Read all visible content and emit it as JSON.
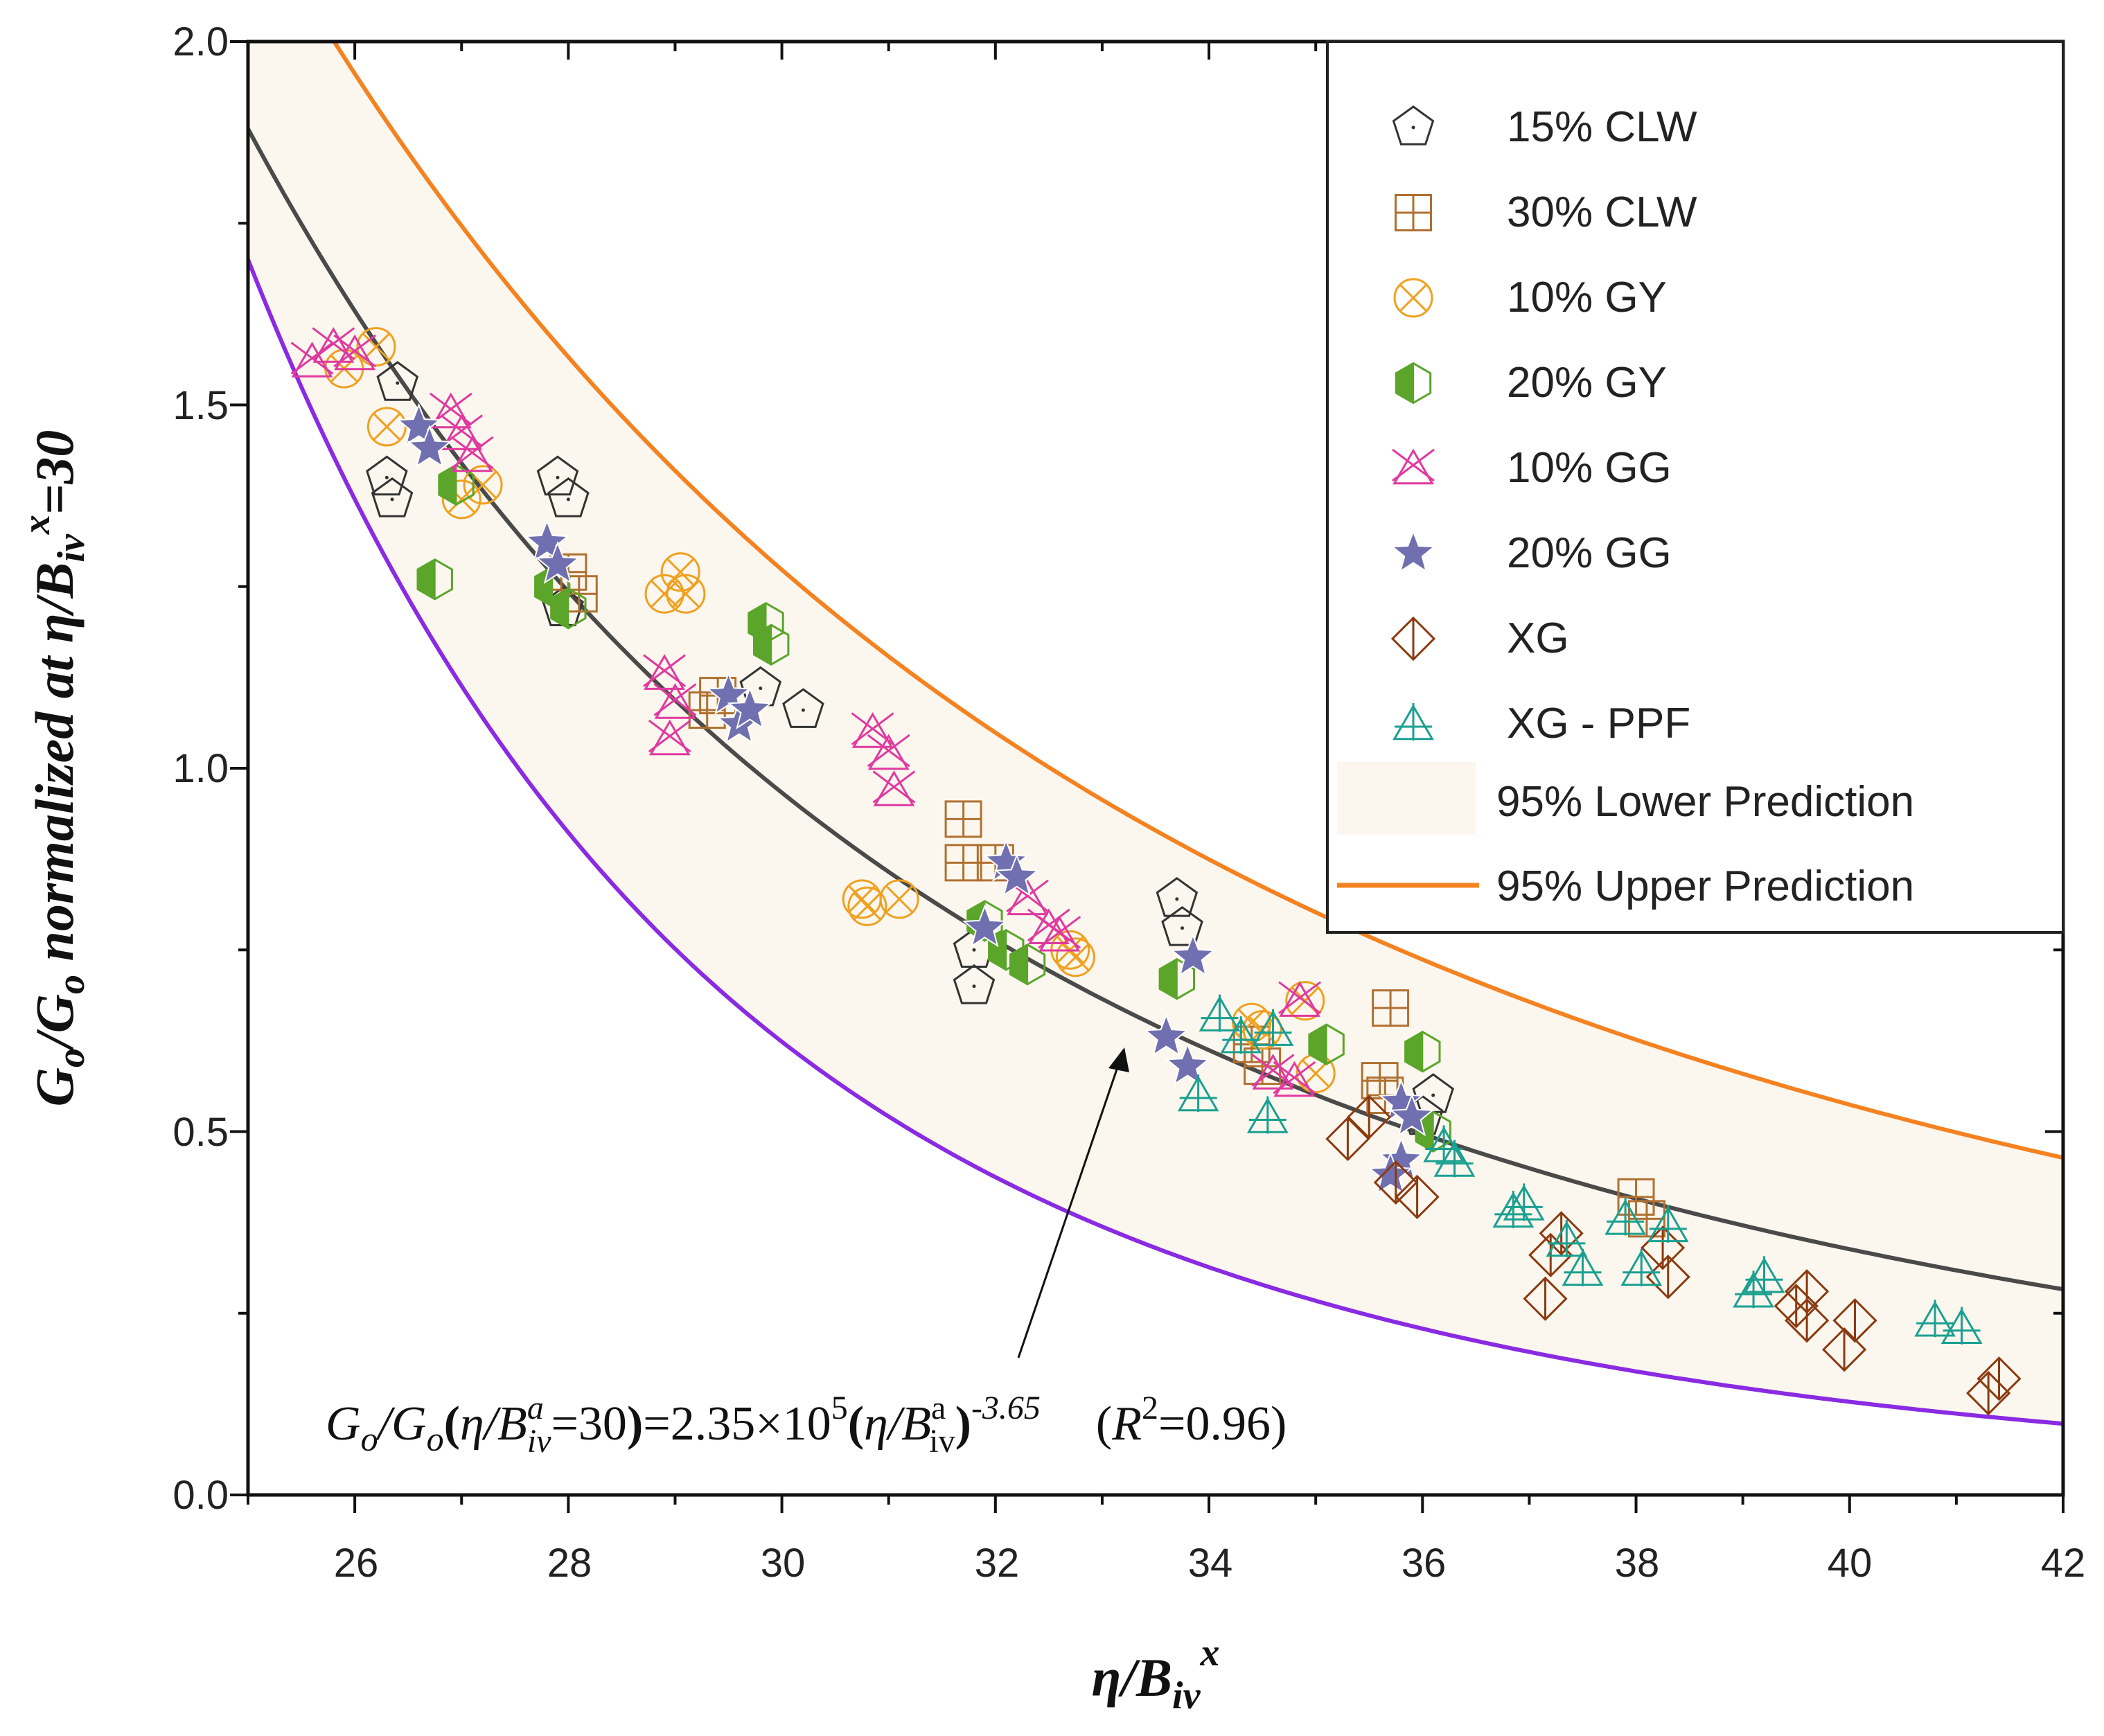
{
  "chart_data": {
    "type": "scatter",
    "title": "",
    "xlabel": {
      "main": "η/B",
      "sub": "iv",
      "sup": "x"
    },
    "ylabel": {
      "main": "G",
      "sub1": "o",
      "mid": "/G",
      "sub2": "o",
      "rest": " normalized at η/B",
      "sub3": "iv",
      "sup": "x",
      "tail": "=30"
    },
    "xlim": [
      25,
      42
    ],
    "ylim": [
      0.0,
      2.0
    ],
    "xticks": [
      "26",
      "28",
      "30",
      "32",
      "34",
      "36",
      "38",
      "40",
      "42"
    ],
    "yticks": [
      "0.0",
      "0.5",
      "1.0",
      "1.5",
      "2.0"
    ],
    "fit": {
      "coefficient": 235000,
      "exponent": -3.65,
      "normalization": 30,
      "r2": 0.96
    },
    "bands": {
      "lower_factor": 0.905,
      "upper_factor": 1.62
    },
    "equation": {
      "lhs1": "G",
      "lhs1_sub": "o",
      "lhs2": "/G",
      "lhs2_sub": "o",
      "open": "(",
      "eta1": "η/B",
      "a1": "a",
      "iv1": "iv",
      "eq30": "=30",
      "close": ")",
      "eq_coef": "=2.35×10",
      "exp5": "5",
      "open2": "(",
      "eta2": "η/B",
      "a2": "a",
      "iv2": "iv",
      "close2": ")",
      "exp": "-3.65",
      "r2_open": "(",
      "r2_R": "R",
      "r2_sup": "2",
      "r2_val": "=0.96)"
    },
    "legend_position": "top-right",
    "series": [
      {
        "name": "15% CLW",
        "marker": "pentagon",
        "color": "#333333",
        "points": [
          [
            26.4,
            1.53
          ],
          [
            26.3,
            1.4
          ],
          [
            26.35,
            1.37
          ],
          [
            27.9,
            1.4
          ],
          [
            28.0,
            1.37
          ],
          [
            27.95,
            1.22
          ],
          [
            29.8,
            1.11
          ],
          [
            30.2,
            1.08
          ],
          [
            31.8,
            0.75
          ],
          [
            31.8,
            0.7
          ],
          [
            33.7,
            0.82
          ],
          [
            33.75,
            0.78
          ],
          [
            36.1,
            0.55
          ],
          [
            36.0,
            0.52
          ]
        ]
      },
      {
        "name": "30% CLW",
        "marker": "square-plus",
        "color": "#b07030",
        "points": [
          [
            28.0,
            1.27
          ],
          [
            28.1,
            1.24
          ],
          [
            29.4,
            1.1
          ],
          [
            29.3,
            1.08
          ],
          [
            31.7,
            0.93
          ],
          [
            31.7,
            0.87
          ],
          [
            32.0,
            0.87
          ],
          [
            34.4,
            0.62
          ],
          [
            34.5,
            0.59
          ],
          [
            35.7,
            0.67
          ],
          [
            35.6,
            0.57
          ],
          [
            35.65,
            0.55
          ],
          [
            38.0,
            0.41
          ],
          [
            38.1,
            0.38
          ]
        ]
      },
      {
        "name": "10% GY",
        "marker": "circle-x",
        "color": "#f0a020",
        "points": [
          [
            25.9,
            1.55
          ],
          [
            26.2,
            1.58
          ],
          [
            26.3,
            1.47
          ],
          [
            27.0,
            1.37
          ],
          [
            27.2,
            1.39
          ],
          [
            28.9,
            1.24
          ],
          [
            29.05,
            1.27
          ],
          [
            29.1,
            1.24
          ],
          [
            30.75,
            0.82
          ],
          [
            30.8,
            0.81
          ],
          [
            31.1,
            0.82
          ],
          [
            32.7,
            0.75
          ],
          [
            32.75,
            0.74
          ],
          [
            34.4,
            0.65
          ],
          [
            34.5,
            0.64
          ],
          [
            34.9,
            0.68
          ],
          [
            35.0,
            0.58
          ]
        ]
      },
      {
        "name": "20% GY",
        "marker": "hexagon-half",
        "color": "#5aa52a",
        "points": [
          [
            26.75,
            1.26
          ],
          [
            26.95,
            1.39
          ],
          [
            27.85,
            1.25
          ],
          [
            28.0,
            1.22
          ],
          [
            29.85,
            1.2
          ],
          [
            29.9,
            1.17
          ],
          [
            31.9,
            0.79
          ],
          [
            32.1,
            0.75
          ],
          [
            32.3,
            0.73
          ],
          [
            33.7,
            0.71
          ],
          [
            35.1,
            0.62
          ],
          [
            36.0,
            0.61
          ],
          [
            36.1,
            0.5
          ]
        ]
      },
      {
        "name": "10% GG",
        "marker": "triangle-x",
        "color": "#e03aa0",
        "points": [
          [
            25.6,
            1.56
          ],
          [
            25.8,
            1.58
          ],
          [
            26.0,
            1.57
          ],
          [
            26.9,
            1.49
          ],
          [
            27.0,
            1.46
          ],
          [
            27.1,
            1.43
          ],
          [
            28.9,
            1.13
          ],
          [
            29.0,
            1.09
          ],
          [
            28.95,
            1.04
          ],
          [
            30.85,
            1.05
          ],
          [
            31.0,
            1.02
          ],
          [
            31.05,
            0.97
          ],
          [
            32.3,
            0.82
          ],
          [
            32.5,
            0.78
          ],
          [
            32.6,
            0.77
          ],
          [
            34.6,
            0.58
          ],
          [
            34.8,
            0.57
          ],
          [
            34.85,
            0.68
          ]
        ]
      },
      {
        "name": "20% GG",
        "marker": "star",
        "color": "#7070b0",
        "points": [
          [
            26.6,
            1.47
          ],
          [
            26.7,
            1.44
          ],
          [
            27.8,
            1.31
          ],
          [
            27.9,
            1.28
          ],
          [
            29.5,
            1.1
          ],
          [
            29.6,
            1.06
          ],
          [
            29.7,
            1.08
          ],
          [
            32.1,
            0.87
          ],
          [
            32.2,
            0.85
          ],
          [
            31.9,
            0.78
          ],
          [
            33.85,
            0.74
          ],
          [
            33.6,
            0.63
          ],
          [
            33.8,
            0.59
          ],
          [
            35.8,
            0.54
          ],
          [
            35.9,
            0.52
          ],
          [
            35.8,
            0.46
          ],
          [
            35.7,
            0.44
          ]
        ]
      },
      {
        "name": "XG",
        "marker": "diamond-bar",
        "color": "#8b3a10",
        "points": [
          [
            35.3,
            0.49
          ],
          [
            35.5,
            0.52
          ],
          [
            35.75,
            0.43
          ],
          [
            35.95,
            0.41
          ],
          [
            37.15,
            0.27
          ],
          [
            37.2,
            0.33
          ],
          [
            37.3,
            0.36
          ],
          [
            38.25,
            0.34
          ],
          [
            38.3,
            0.3
          ],
          [
            39.5,
            0.26
          ],
          [
            39.6,
            0.28
          ],
          [
            39.6,
            0.24
          ],
          [
            39.95,
            0.2
          ],
          [
            40.05,
            0.24
          ],
          [
            41.3,
            0.14
          ],
          [
            41.4,
            0.16
          ]
        ]
      },
      {
        "name": "XG - PPF",
        "marker": "triangle-plus",
        "color": "#1aa090",
        "points": [
          [
            33.9,
            0.55
          ],
          [
            34.1,
            0.66
          ],
          [
            34.3,
            0.63
          ],
          [
            34.55,
            0.52
          ],
          [
            34.6,
            0.64
          ],
          [
            36.2,
            0.48
          ],
          [
            36.3,
            0.46
          ],
          [
            36.85,
            0.39
          ],
          [
            36.95,
            0.4
          ],
          [
            37.35,
            0.35
          ],
          [
            37.5,
            0.31
          ],
          [
            37.9,
            0.38
          ],
          [
            38.05,
            0.31
          ],
          [
            38.3,
            0.37
          ],
          [
            39.1,
            0.28
          ],
          [
            39.2,
            0.3
          ],
          [
            40.8,
            0.24
          ],
          [
            41.05,
            0.23
          ]
        ]
      }
    ],
    "legend_bands": [
      {
        "name": "95% Lower Prediction",
        "fill": "#fbf7ee"
      },
      {
        "name": "95% Upper Prediction",
        "color": "#f58220"
      }
    ],
    "colors": {
      "fit_line": "#4a4a4a",
      "upper_line": "#f58220",
      "lower_line": "#8a2be2",
      "band_fill": "#fbf7ee"
    }
  }
}
